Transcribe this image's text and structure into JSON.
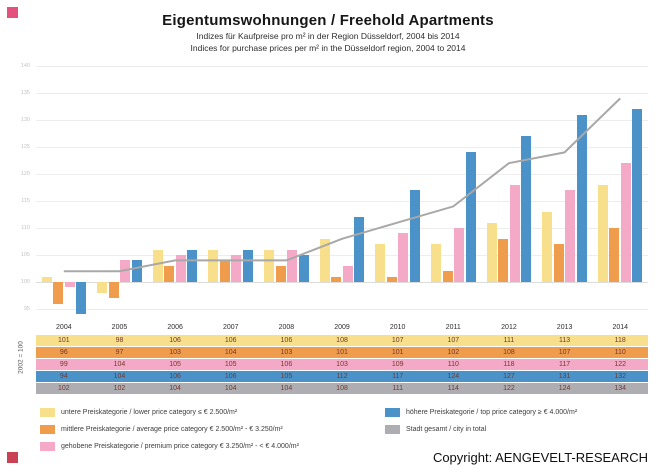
{
  "page": {
    "title": "Eigentumswohnungen / Freehold Apartments",
    "subtitle_de": "Indizes für Kaufpreise pro m² in der Region Düsseldorf, 2004 bis 2014",
    "subtitle_en": "Indices for purchase prices per m² in the Düsseldorf region, 2004 to 2014",
    "axis_note": "2002 = 100",
    "copyright": "Copyright: AENGEVELT-RESEARCH"
  },
  "colors": {
    "lower": "#f7df8b",
    "average": "#ef9d4d",
    "premium": "#f4aac7",
    "top": "#4b92c8",
    "city": "#aeaeb2",
    "line": "#a8a8a8"
  },
  "chart_data": {
    "type": "bar",
    "title": "Eigentumswohnungen / Freehold Apartments",
    "xlabel": "",
    "ylabel": "2002 = 100",
    "baseline": 100,
    "ylim": [
      93,
      141
    ],
    "yticks": [
      95,
      100,
      105,
      110,
      115,
      120,
      125,
      130,
      135,
      140
    ],
    "grid": true,
    "legend_position": "bottom",
    "categories": [
      "2004",
      "2005",
      "2006",
      "2007",
      "2008",
      "2009",
      "2010",
      "2011",
      "2012",
      "2013",
      "2014"
    ],
    "series": [
      {
        "name": "untere Preiskategorie / lower price category ≤ € 2.500/m²",
        "type": "bar",
        "color_key": "lower",
        "values": [
          101,
          98,
          106,
          106,
          106,
          108,
          107,
          107,
          111,
          113,
          118
        ]
      },
      {
        "name": "mittlere Preiskategorie / average price category  € 2.500/m² - € 3.250/m²",
        "type": "bar",
        "color_key": "average",
        "values": [
          96,
          97,
          103,
          104,
          103,
          101,
          101,
          102,
          108,
          107,
          110
        ]
      },
      {
        "name": "gehobene Preiskategorie / premium price category € 3.250/m² - < € 4.000/m²",
        "type": "bar",
        "color_key": "premium",
        "values": [
          99,
          104,
          105,
          105,
          106,
          103,
          109,
          110,
          118,
          117,
          122
        ]
      },
      {
        "name": "höhere Preiskategorie / top price category ≥ € 4.000/m²",
        "type": "bar",
        "color_key": "top",
        "values": [
          94,
          104,
          106,
          106,
          105,
          112,
          117,
          124,
          127,
          131,
          132
        ]
      },
      {
        "name": "Stadt gesamt / city in total",
        "type": "line",
        "color_key": "city",
        "values": [
          102,
          102,
          104,
          104,
          104,
          108,
          111,
          114,
          122,
          124,
          134
        ]
      }
    ]
  },
  "legend": {
    "left_items": [
      {
        "color_key": "lower",
        "label": "untere Preiskategorie / lower price category ≤ € 2.500/m²"
      },
      {
        "color_key": "average",
        "label": "mittlere Preiskategorie / average price category  € 2.500/m² - € 3.250/m²"
      },
      {
        "color_key": "premium",
        "label": "gehobene Preiskategorie / premium price category € 3.250/m² - < € 4.000/m²"
      }
    ],
    "right_items": [
      {
        "color_key": "top",
        "label": "höhere Preiskategorie / top price category ≥ € 4.000/m²"
      },
      {
        "color_key": "city",
        "label": "Stadt gesamt / city in total"
      }
    ]
  }
}
